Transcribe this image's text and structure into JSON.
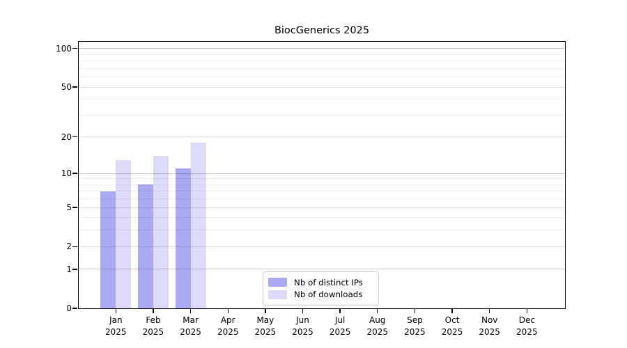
{
  "chart_data": {
    "type": "bar",
    "title": "BiocGenerics 2025",
    "categories": [
      "Jan",
      "Feb",
      "Mar",
      "Apr",
      "May",
      "Jun",
      "Jul",
      "Aug",
      "Sep",
      "Oct",
      "Nov",
      "Dec"
    ],
    "tick_year": "2025",
    "series": [
      {
        "name": "Nb of distinct IPs",
        "color": "#a9a9f4",
        "values": [
          7,
          8,
          11,
          null,
          null,
          null,
          null,
          null,
          null,
          null,
          null,
          null
        ]
      },
      {
        "name": "Nb of downloads",
        "color": "#dcdcfa",
        "values": [
          13,
          14,
          18,
          null,
          null,
          null,
          null,
          null,
          null,
          null,
          null,
          null
        ]
      }
    ],
    "xlabel": "",
    "ylabel": "",
    "yscale": "log1p",
    "ylim": [
      0,
      113
    ],
    "yticks": [
      0,
      1,
      2,
      5,
      10,
      20,
      50,
      100
    ],
    "gridlines": {
      "major": [
        1,
        10,
        100
      ],
      "mid": [
        2,
        5,
        20,
        50
      ],
      "minor": [
        3,
        4,
        6,
        7,
        8,
        9,
        30,
        40,
        60,
        70,
        80,
        90
      ]
    },
    "grid": true,
    "legend_position": "inside-bottom-center"
  },
  "colors": {
    "background": "#ffffff",
    "axis": "#000000",
    "grid_major": "rgba(0,0,0,0.21)",
    "grid_mid": "rgba(0,0,0,0.12)",
    "grid_minor": "rgba(0,0,0,0.06)"
  }
}
